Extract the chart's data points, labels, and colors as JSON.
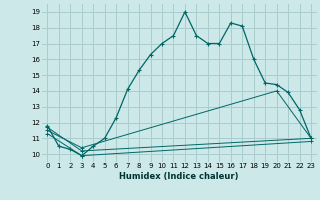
{
  "title": "",
  "xlabel": "Humidex (Indice chaleur)",
  "ylabel": "",
  "bg_color": "#cce8e8",
  "grid_color": "#aacccc",
  "line_color": "#006666",
  "xlim": [
    -0.5,
    23.5
  ],
  "ylim": [
    9.5,
    19.5
  ],
  "xticks": [
    0,
    1,
    2,
    3,
    4,
    5,
    6,
    7,
    8,
    9,
    10,
    11,
    12,
    13,
    14,
    15,
    16,
    17,
    18,
    19,
    20,
    21,
    22,
    23
  ],
  "yticks": [
    10,
    11,
    12,
    13,
    14,
    15,
    16,
    17,
    18,
    19
  ],
  "series1_x": [
    0,
    1,
    2,
    3,
    4,
    5,
    6,
    7,
    8,
    9,
    10,
    11,
    12,
    13,
    14,
    15,
    16,
    17,
    18,
    19,
    20,
    21,
    22,
    23
  ],
  "series1_y": [
    11.8,
    10.5,
    10.3,
    9.9,
    10.5,
    11.0,
    12.3,
    14.1,
    15.3,
    16.3,
    17.0,
    17.5,
    19.0,
    17.5,
    17.0,
    17.0,
    18.3,
    18.1,
    16.0,
    14.5,
    14.4,
    13.9,
    12.8,
    11.0
  ],
  "series2_x": [
    0,
    3,
    23
  ],
  "series2_y": [
    11.7,
    10.2,
    11.0
  ],
  "series3_x": [
    0,
    3,
    20,
    23
  ],
  "series3_y": [
    11.5,
    10.4,
    14.0,
    11.0
  ],
  "series4_x": [
    0,
    3,
    23
  ],
  "series4_y": [
    11.3,
    9.9,
    10.8
  ]
}
